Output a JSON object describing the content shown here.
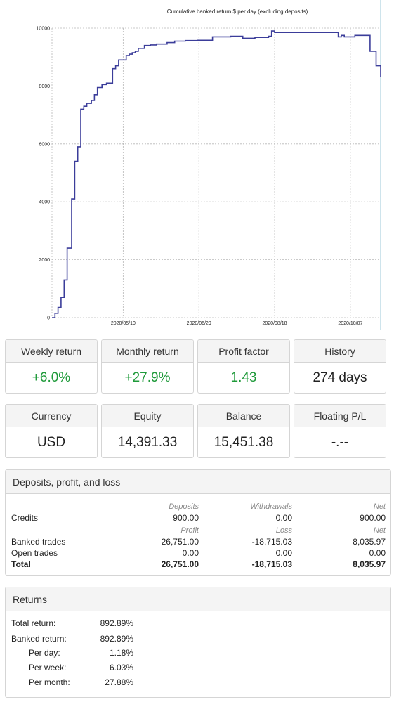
{
  "chart": {
    "title": "Cumulative banked return $ per day (excluding deposits)",
    "series_color": "#3b3d9a"
  },
  "chart_data": {
    "type": "line",
    "title": "Cumulative banked return $ per day (excluding deposits)",
    "xlabel": "",
    "ylabel": "",
    "x_tick_labels": [
      "2020/05/10",
      "2020/06/29",
      "2020/08/18",
      "2020/10/07"
    ],
    "y_tick_labels": [
      "0",
      "2000",
      "4000",
      "6000",
      "8000",
      "10000"
    ],
    "ylim": [
      0,
      10000
    ],
    "xlim": [
      "2020-03-24",
      "2020-10-27"
    ],
    "grid": true,
    "series": [
      {
        "x": [
          "2020-03-24",
          "2020-03-26",
          "2020-03-28",
          "2020-03-30",
          "2020-04-01",
          "2020-04-03",
          "2020-04-06",
          "2020-04-08",
          "2020-04-10",
          "2020-04-12",
          "2020-04-14",
          "2020-04-16",
          "2020-04-19",
          "2020-04-21",
          "2020-04-23",
          "2020-04-26",
          "2020-04-29",
          "2020-05-03",
          "2020-05-05",
          "2020-05-07",
          "2020-05-12",
          "2020-05-14",
          "2020-05-16",
          "2020-05-18",
          "2020-05-20",
          "2020-05-24",
          "2020-05-28",
          "2020-06-01",
          "2020-06-08",
          "2020-06-13",
          "2020-06-20",
          "2020-06-28",
          "2020-07-08",
          "2020-07-20",
          "2020-07-28",
          "2020-08-05",
          "2020-08-14",
          "2020-08-16",
          "2020-08-18",
          "2020-08-26",
          "2020-09-10",
          "2020-09-29",
          "2020-10-01",
          "2020-10-03",
          "2020-10-10",
          "2020-10-20",
          "2020-10-22",
          "2020-10-24",
          "2020-10-27"
        ],
        "y": [
          0,
          150,
          350,
          700,
          1300,
          2400,
          4100,
          5400,
          5900,
          7200,
          7300,
          7400,
          7500,
          7700,
          7950,
          8050,
          8100,
          8600,
          8700,
          8900,
          9050,
          9100,
          9150,
          9200,
          9300,
          9400,
          9420,
          9450,
          9500,
          9550,
          9570,
          9580,
          9700,
          9720,
          9650,
          9680,
          9720,
          9900,
          9850,
          9850,
          9850,
          9700,
          9750,
          9700,
          9750,
          9200,
          9200,
          8700,
          8300
        ]
      }
    ]
  },
  "stats_row1": [
    {
      "label": "Weekly return",
      "value": "+6.0%",
      "positive": true
    },
    {
      "label": "Monthly return",
      "value": "+27.9%",
      "positive": true
    },
    {
      "label": "Profit factor",
      "value": "1.43",
      "positive": true
    },
    {
      "label": "History",
      "value": "274 days",
      "positive": false
    }
  ],
  "stats_row2": [
    {
      "label": "Currency",
      "value": "USD"
    },
    {
      "label": "Equity",
      "value": "14,391.33"
    },
    {
      "label": "Balance",
      "value": "15,451.38"
    },
    {
      "label": "Floating P/L",
      "value": "-.--"
    }
  ],
  "dpl": {
    "title": "Deposits, profit, and loss",
    "head1": {
      "c1": "Deposits",
      "c2": "Withdrawals",
      "c3": "Net"
    },
    "credits": {
      "label": "Credits",
      "c1": "900.00",
      "c2": "0.00",
      "c3": "900.00"
    },
    "head2": {
      "c1": "Profit",
      "c2": "Loss",
      "c3": "Net"
    },
    "banked": {
      "label": "Banked trades",
      "c1": "26,751.00",
      "c2": "-18,715.03",
      "c3": "8,035.97"
    },
    "open": {
      "label": "Open trades",
      "c1": "0.00",
      "c2": "0.00",
      "c3": "0.00"
    },
    "total": {
      "label": "Total",
      "c1": "26,751.00",
      "c2": "-18,715.03",
      "c3": "8,035.97"
    }
  },
  "returns": {
    "title": "Returns",
    "rows": [
      {
        "label": "Total return:",
        "value": "892.89%"
      },
      {
        "label": "Banked return:",
        "value": "892.89%"
      },
      {
        "label": "Per day:",
        "value": "1.18%"
      },
      {
        "label": "Per week:",
        "value": "6.03%"
      },
      {
        "label": "Per month:",
        "value": "27.88%"
      }
    ]
  }
}
